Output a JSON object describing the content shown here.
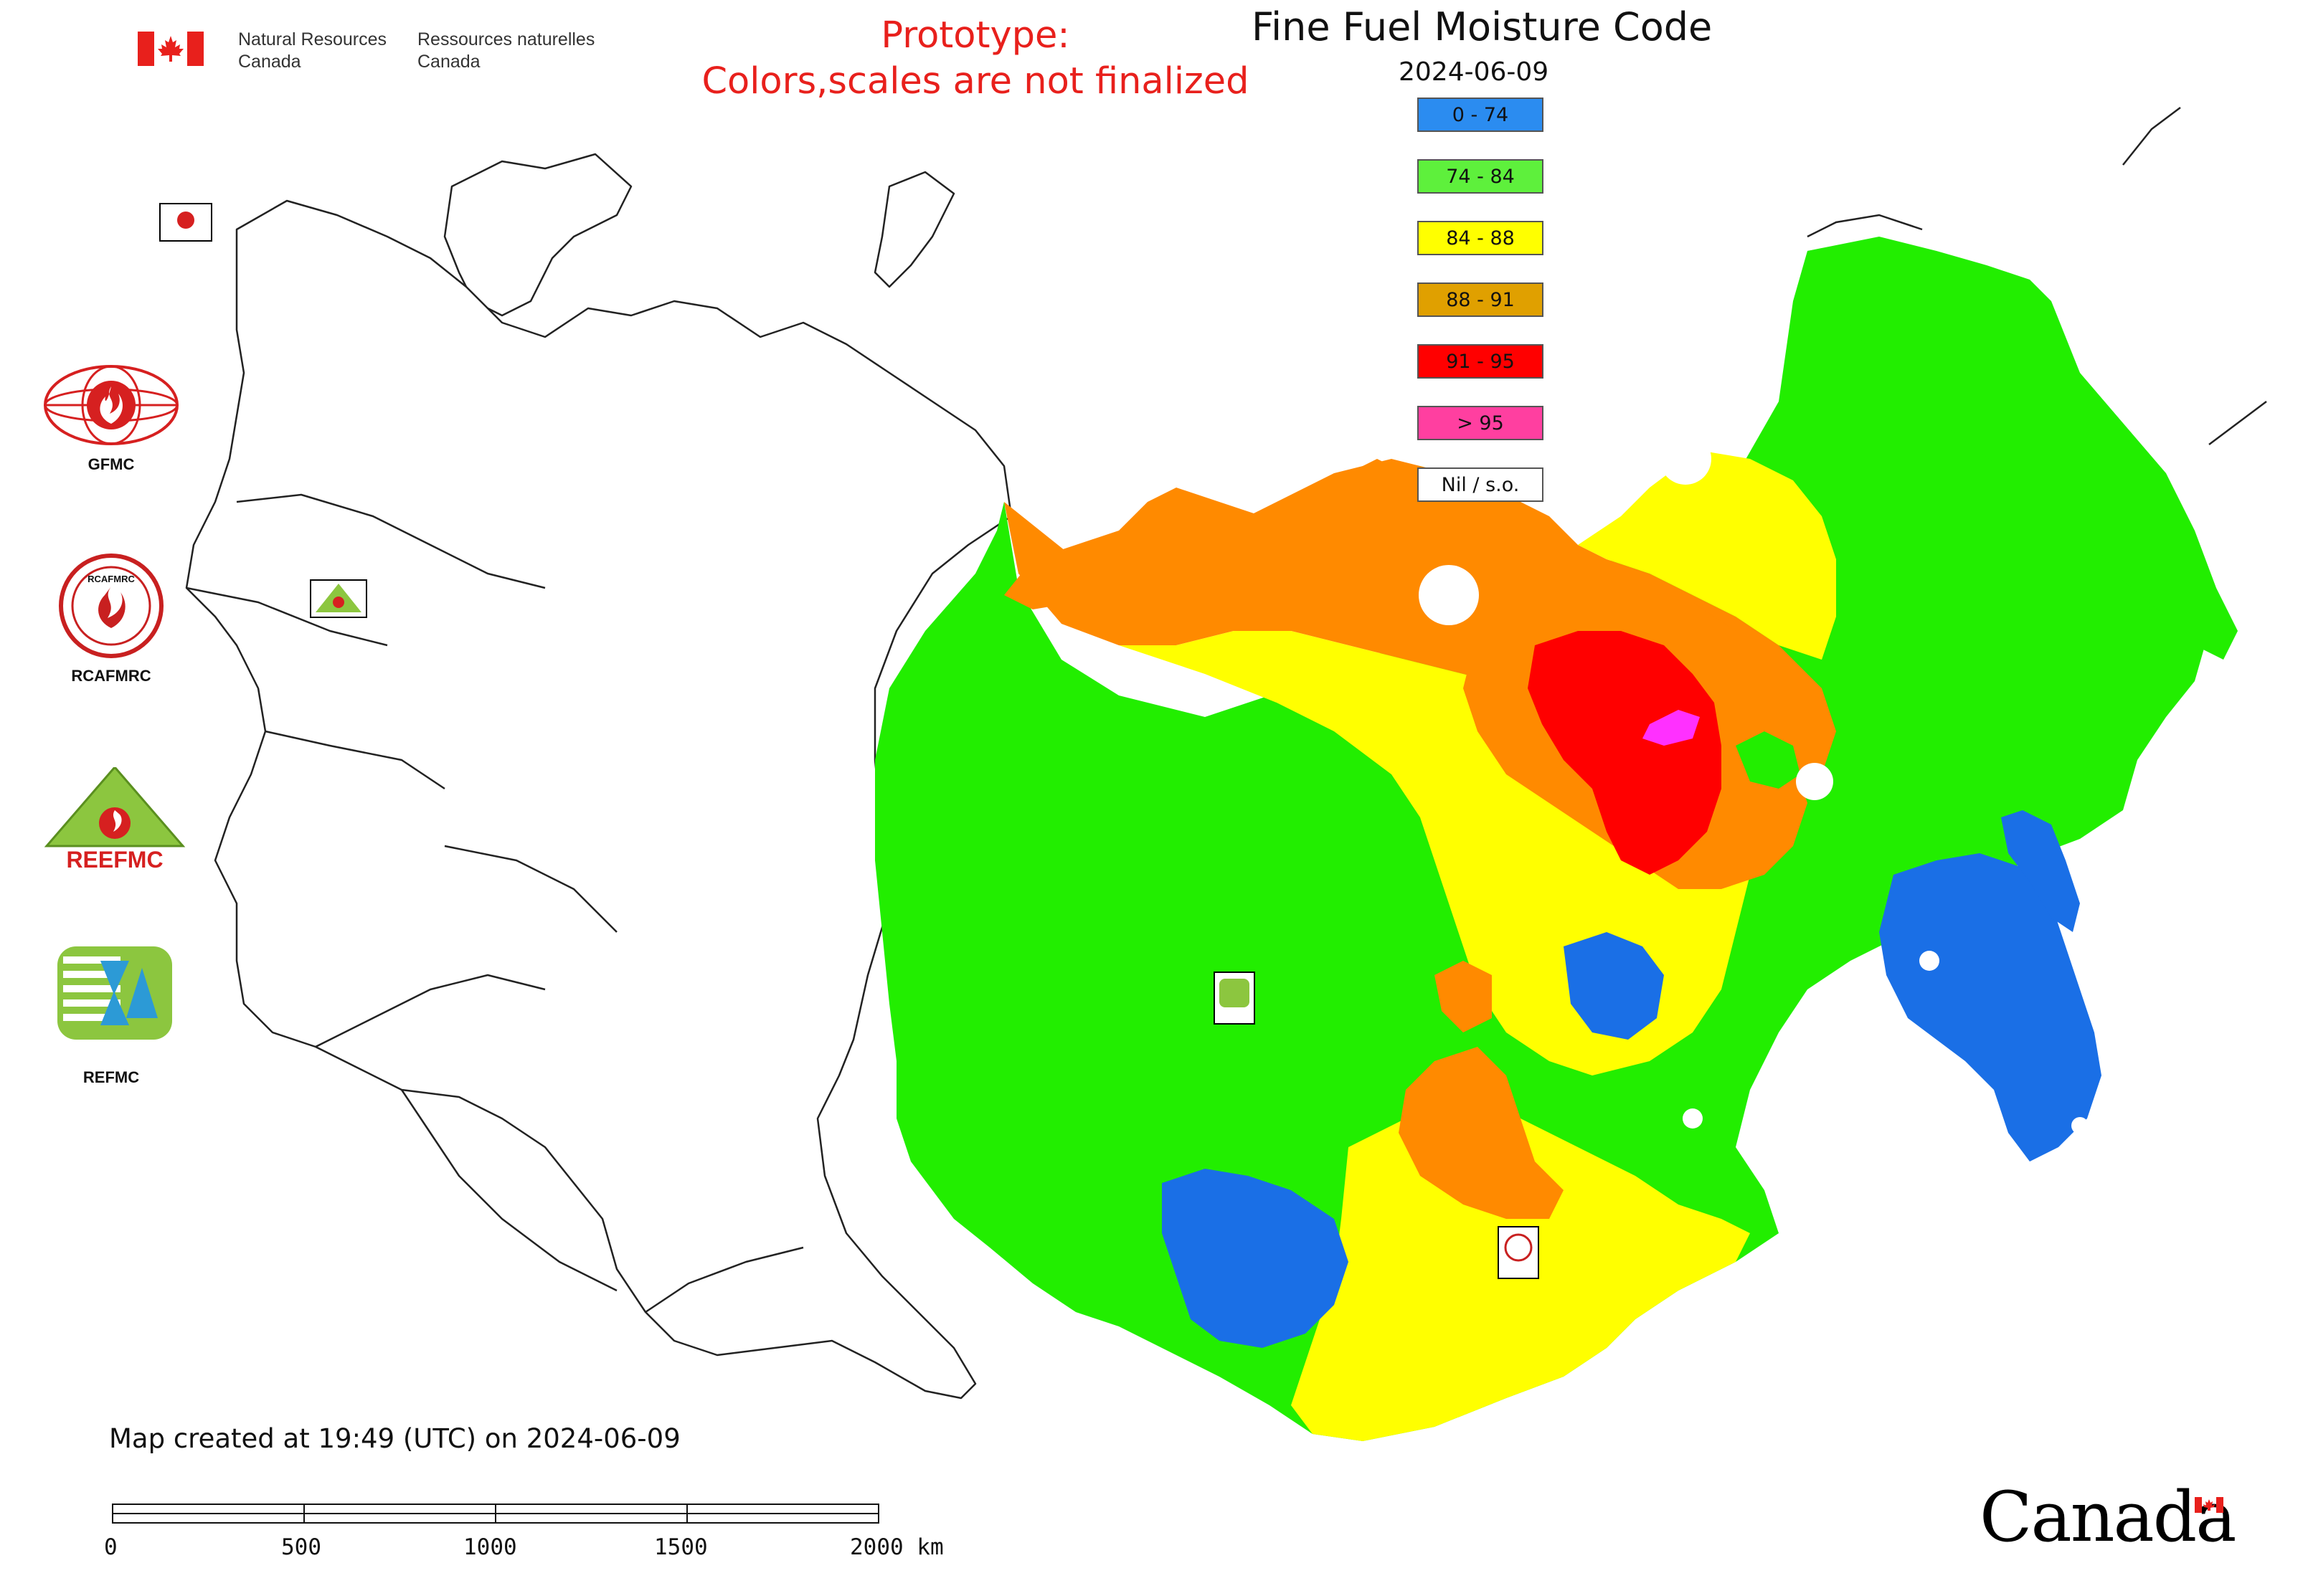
{
  "header": {
    "nrcan_en_line1": "Natural Resources",
    "nrcan_en_line2": "Canada",
    "nrcan_fr_line1": "Ressources naturelles",
    "nrcan_fr_line2": "Canada",
    "prototype_line1": "Prototype:",
    "prototype_line2": "Colors,scales are not finalized"
  },
  "map": {
    "title": "Fine Fuel Moisture Code",
    "date": "2024-06-09",
    "created_note": "Map created at 19:49 (UTC) on 2024-06-09",
    "legend": [
      {
        "label": "0 - 74",
        "color": "#2b8cf0"
      },
      {
        "label": "74 - 84",
        "color": "#5ef03c"
      },
      {
        "label": "84 - 88",
        "color": "#ffff00"
      },
      {
        "label": "88 - 91",
        "color": "#e0a000"
      },
      {
        "label": "91 - 95",
        "color": "#ff0000"
      },
      {
        "label": "> 95",
        "color": "#ff3fa0"
      },
      {
        "label": "Nil / s.o.",
        "color": "#ffffff"
      }
    ],
    "zone_colors": {
      "green": "#22ee00",
      "blue": "#1a6fe6",
      "yellow": "#ffff00",
      "orange": "#ff8a00",
      "red": "#ff0000",
      "magenta": "#ff30ff"
    }
  },
  "logos": [
    {
      "label": "GFMC",
      "icon": "gfmc-logo"
    },
    {
      "label": "RCAFMRC",
      "icon": "rcafmrc-logo"
    },
    {
      "label": "",
      "icon": "reefmc-logo",
      "wordmark": "REEFMC"
    },
    {
      "label": "REFMC",
      "icon": "refmc-logo"
    }
  ],
  "scale_bar": {
    "ticks": [
      "0",
      "500",
      "1000",
      "1500"
    ],
    "end_label": "2000 km"
  },
  "footer": {
    "wordmark": "Canada"
  }
}
